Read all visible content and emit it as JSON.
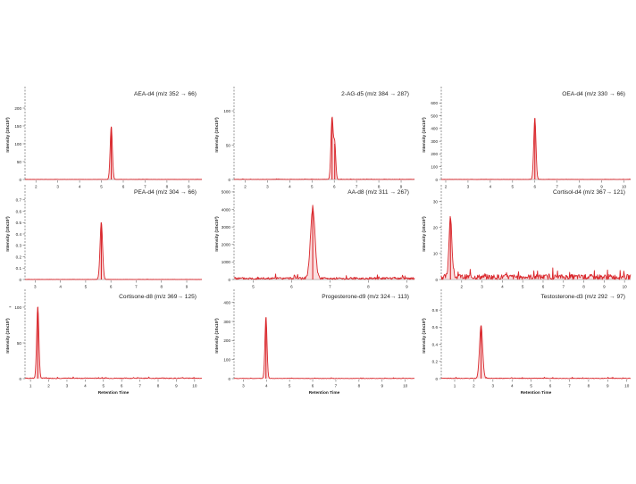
{
  "figure": {
    "stray_mark": "-"
  },
  "chart_data": [
    {
      "type": "line",
      "title": "AEA-d4 (m/z 352 → 66)",
      "ylabel": "Intensity (10x10³)",
      "xlabel": "",
      "xlim": [
        1.5,
        9.6
      ],
      "ylim": [
        0,
        250
      ],
      "xticks": [
        2,
        3,
        4,
        5,
        6,
        7,
        8,
        9
      ],
      "yticks": [
        0,
        50,
        100,
        150,
        200
      ],
      "color": "#d9262b",
      "peaks": [
        {
          "x": 5.45,
          "height": 148,
          "width": 0.05
        }
      ],
      "noise": 0.4,
      "seed": 1,
      "x_axis_visible": true,
      "y_axis_dashed": true
    },
    {
      "type": "line",
      "title": "2-AG-d5 (m/z 384 → 287)",
      "ylabel": "Intensity (10x10³)",
      "xlabel": "",
      "xlim": [
        1.5,
        9.6
      ],
      "ylim": [
        0,
        130
      ],
      "xticks": [
        2,
        3,
        4,
        5,
        6,
        7,
        8,
        9
      ],
      "yticks": [
        0,
        50,
        100
      ],
      "color": "#d9262b",
      "peaks": [
        {
          "x": 5.9,
          "height": 90,
          "width": 0.05
        },
        {
          "x": 6.02,
          "height": 52,
          "width": 0.045
        }
      ],
      "noise": 0.3,
      "seed": 2,
      "x_axis_visible": true,
      "y_axis_dashed": true
    },
    {
      "type": "line",
      "title": "OEA-d4 (m/z 330 → 66)",
      "ylabel": "Intensity (10x10³)",
      "xlabel": "",
      "xlim": [
        1.8,
        10.3
      ],
      "ylim": [
        0,
        700
      ],
      "xticks": [
        2,
        3,
        4,
        5,
        6,
        7,
        8,
        9,
        10
      ],
      "yticks": [
        0,
        100,
        200,
        300,
        400,
        500,
        600
      ],
      "color": "#d9262b",
      "peaks": [
        {
          "x": 6.0,
          "height": 480,
          "width": 0.05
        }
      ],
      "noise": 1,
      "seed": 3,
      "x_axis_visible": true,
      "y_axis_dashed": true
    },
    {
      "type": "line",
      "title": "PEA-d4 (m/z 304 → 66)",
      "ylabel": "Intensity (10x10³)",
      "xlabel": "",
      "xlim": [
        2.6,
        9.6
      ],
      "ylim": [
        0,
        0.8
      ],
      "xticks": [
        3,
        4,
        5,
        6,
        7,
        8,
        9
      ],
      "yticks": [
        0,
        0.1,
        0.2,
        0.3,
        0.4,
        0.5,
        0.6,
        0.7
      ],
      "color": "#d9262b",
      "peaks": [
        {
          "x": 5.62,
          "height": 0.5,
          "width": 0.05
        }
      ],
      "noise": 0.001,
      "seed": 4,
      "x_axis_visible": true,
      "y_axis_dashed": true
    },
    {
      "type": "line",
      "title": "AA-d8 (m/z 311 → 267)",
      "ylabel": "Intensity (10x10³)",
      "xlabel": "",
      "xlim": [
        4.5,
        9.2
      ],
      "ylim": [
        0,
        5200
      ],
      "xticks": [
        5,
        6,
        7,
        8,
        9
      ],
      "yticks": [
        0,
        1000,
        2000,
        3000,
        4000,
        5000
      ],
      "color": "#d9262b",
      "peaks": [
        {
          "x": 6.55,
          "height": 3950,
          "width": 0.06
        }
      ],
      "noise": 90,
      "seed": 5,
      "x_axis_visible": true,
      "y_axis_dashed": true
    },
    {
      "type": "line",
      "title": "Cortisol-d4 (m/z 367→ 121)",
      "ylabel": "Intensity (10x10³)",
      "xlabel": "",
      "xlim": [
        1.0,
        10.3
      ],
      "ylim": [
        0,
        35
      ],
      "xticks": [
        2,
        3,
        4,
        5,
        6,
        7,
        8,
        9,
        10
      ],
      "yticks": [
        0,
        10,
        20,
        30
      ],
      "color": "#d9262b",
      "peaks": [
        {
          "x": 1.45,
          "height": 23.5,
          "width": 0.07
        }
      ],
      "noise": 1.4,
      "seed": 6,
      "x_axis_visible": true,
      "y_axis_dashed": true
    },
    {
      "type": "line",
      "title": "Cortisone-d8 (m/z 369→ 125)",
      "ylabel": "Intensity (10x10³)",
      "xlabel": "Retention Time",
      "xlim": [
        0.7,
        10.4
      ],
      "ylim": [
        0,
        120
      ],
      "xticks": [
        1,
        2,
        3,
        4,
        5,
        6,
        7,
        8,
        9,
        10
      ],
      "yticks": [
        0,
        50,
        100
      ],
      "color": "#d9262b",
      "peaks": [
        {
          "x": 1.4,
          "height": 100,
          "width": 0.06
        }
      ],
      "noise": 0.8,
      "seed": 7,
      "x_axis_visible": false,
      "y_axis_dashed": true
    },
    {
      "type": "line",
      "title": "Progesterone-d9 (m/z 324→ 113)",
      "ylabel": "Intensity (10x10³)",
      "xlabel": "Retention Time",
      "xlim": [
        2.6,
        10.4
      ],
      "ylim": [
        0,
        450
      ],
      "xticks": [
        3,
        4,
        5,
        6,
        7,
        8,
        9,
        10
      ],
      "yticks": [
        0,
        100,
        200,
        300,
        400
      ],
      "color": "#d9262b",
      "peaks": [
        {
          "x": 3.98,
          "height": 322,
          "width": 0.045
        }
      ],
      "noise": 1.5,
      "seed": 8,
      "x_axis_visible": false,
      "y_axis_dashed": true
    },
    {
      "type": "line",
      "title": "Testosterone-d3 (m/z 292 → 97)",
      "ylabel": "Intensity (10x10³)",
      "xlabel": "Retention Time",
      "xlim": [
        0.3,
        10.2
      ],
      "ylim": [
        0,
        1.0
      ],
      "xticks": [
        1,
        2,
        3,
        4,
        5,
        6,
        7,
        8,
        9,
        10
      ],
      "yticks": [
        0,
        0.2,
        0.4,
        0.6,
        0.8
      ],
      "color": "#d9262b",
      "peaks": [
        {
          "x": 2.38,
          "height": 0.62,
          "width": 0.08
        }
      ],
      "noise": 0.005,
      "seed": 9,
      "x_axis_visible": false,
      "y_axis_dashed": true
    }
  ]
}
